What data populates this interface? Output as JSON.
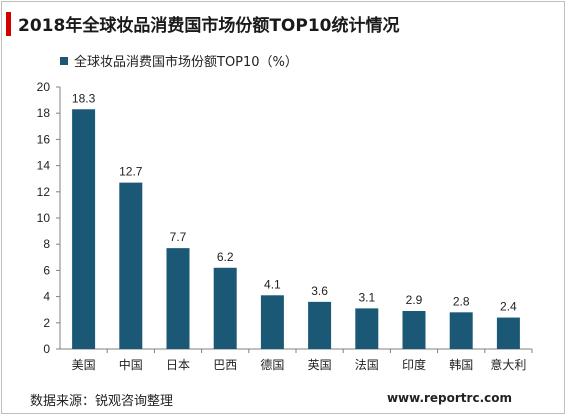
{
  "colors": {
    "bar": "#1b5876",
    "title_marker": "#d40000",
    "axis": "#808080"
  },
  "header": {
    "title": "2018年全球妆品消费国市场份额TOP10统计情况"
  },
  "footer": {
    "source": "数据来源：锐观咨询整理",
    "website": "www.reportrc.com"
  },
  "chart_data": {
    "type": "bar",
    "title": "",
    "xlabel": "",
    "ylabel": "",
    "categories": [
      "美国",
      "中国",
      "日本",
      "巴西",
      "德国",
      "英国",
      "法国",
      "印度",
      "韩国",
      "意大利"
    ],
    "series": [
      {
        "name": "全球妆品消费国市场份额TOP10（%）",
        "values": [
          18.3,
          12.7,
          7.7,
          6.2,
          4.1,
          3.6,
          3.1,
          2.9,
          2.8,
          2.4
        ]
      }
    ],
    "ylim": [
      0,
      20
    ],
    "yticks": [
      0,
      2,
      4,
      6,
      8,
      10,
      12,
      14,
      16,
      18,
      20
    ],
    "data_labels": [
      "18.3",
      "12.7",
      "7.7",
      "6.2",
      "4.1",
      "3.6",
      "3.1",
      "2.9",
      "2.8",
      "2.4"
    ],
    "grid": false,
    "legend_position": "top-left"
  }
}
